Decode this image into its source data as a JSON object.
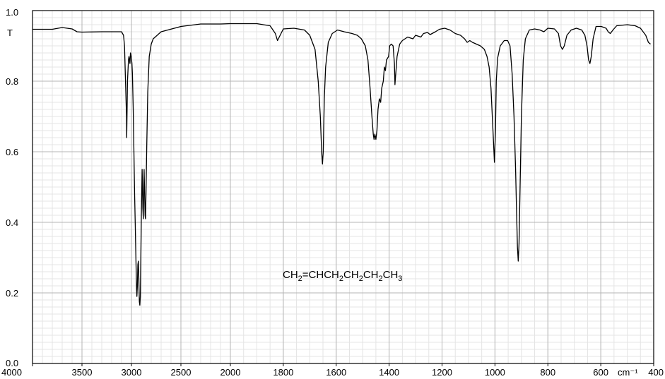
{
  "chart_data": {
    "type": "line",
    "ylabel": "T",
    "x_unit_label": "cm⁻¹",
    "annotation": {
      "parts": [
        {
          "t": "CH",
          "sub": false
        },
        {
          "t": "2",
          "sub": true
        },
        {
          "t": "=CHCH",
          "sub": false
        },
        {
          "t": "2",
          "sub": true
        },
        {
          "t": "CH",
          "sub": false
        },
        {
          "t": "2",
          "sub": true
        },
        {
          "t": "CH",
          "sub": false
        },
        {
          "t": "2",
          "sub": true
        },
        {
          "t": "CH",
          "sub": false
        },
        {
          "t": "3",
          "sub": true
        }
      ]
    },
    "xlim": [
      4000,
      400
    ],
    "ylim": [
      0.0,
      1.0
    ],
    "x_scale": "piecewise-linear",
    "x_breakpoint": 2000,
    "grid": true,
    "x_ticks": [
      "4000",
      "3500",
      "3000",
      "2500",
      "2000",
      "1800",
      "1600",
      "1400",
      "1200",
      "1000",
      "800",
      "600",
      "400"
    ],
    "y_ticks": [
      "0.0",
      "0.2",
      "0.4",
      "0.6",
      "0.8",
      "1.0"
    ],
    "series": [
      {
        "color": "#000000",
        "points": [
          [
            4000,
            0.947
          ],
          [
            3800,
            0.947
          ],
          [
            3700,
            0.952
          ],
          [
            3600,
            0.948
          ],
          [
            3550,
            0.94
          ],
          [
            3500,
            0.939
          ],
          [
            3300,
            0.94
          ],
          [
            3100,
            0.94
          ],
          [
            3080,
            0.93
          ],
          [
            3070,
            0.9
          ],
          [
            3060,
            0.8
          ],
          [
            3050,
            0.7
          ],
          [
            3048,
            0.64
          ],
          [
            3045,
            0.7
          ],
          [
            3040,
            0.8
          ],
          [
            3030,
            0.86
          ],
          [
            3025,
            0.87
          ],
          [
            3015,
            0.85
          ],
          [
            3010,
            0.88
          ],
          [
            3002,
            0.87
          ],
          [
            2995,
            0.85
          ],
          [
            2990,
            0.82
          ],
          [
            2982,
            0.72
          ],
          [
            2975,
            0.6
          ],
          [
            2968,
            0.48
          ],
          [
            2962,
            0.4
          ],
          [
            2955,
            0.3
          ],
          [
            2948,
            0.21
          ],
          [
            2945,
            0.19
          ],
          [
            2940,
            0.22
          ],
          [
            2935,
            0.28
          ],
          [
            2930,
            0.29
          ],
          [
            2925,
            0.24
          ],
          [
            2920,
            0.175
          ],
          [
            2915,
            0.165
          ],
          [
            2910,
            0.19
          ],
          [
            2905,
            0.3
          ],
          [
            2900,
            0.42
          ],
          [
            2895,
            0.5
          ],
          [
            2892,
            0.55
          ],
          [
            2888,
            0.5
          ],
          [
            2885,
            0.44
          ],
          [
            2880,
            0.41
          ],
          [
            2875,
            0.5
          ],
          [
            2872,
            0.55
          ],
          [
            2868,
            0.5
          ],
          [
            2862,
            0.42
          ],
          [
            2858,
            0.41
          ],
          [
            2853,
            0.48
          ],
          [
            2845,
            0.62
          ],
          [
            2835,
            0.77
          ],
          [
            2820,
            0.87
          ],
          [
            2800,
            0.905
          ],
          [
            2780,
            0.92
          ],
          [
            2700,
            0.94
          ],
          [
            2500,
            0.955
          ],
          [
            2300,
            0.962
          ],
          [
            2100,
            0.962
          ],
          [
            2000,
            0.963
          ],
          [
            1900,
            0.963
          ],
          [
            1850,
            0.957
          ],
          [
            1830,
            0.935
          ],
          [
            1822,
            0.915
          ],
          [
            1812,
            0.93
          ],
          [
            1800,
            0.948
          ],
          [
            1760,
            0.95
          ],
          [
            1720,
            0.945
          ],
          [
            1700,
            0.93
          ],
          [
            1680,
            0.89
          ],
          [
            1668,
            0.8
          ],
          [
            1660,
            0.7
          ],
          [
            1655,
            0.6
          ],
          [
            1652,
            0.565
          ],
          [
            1649,
            0.6
          ],
          [
            1645,
            0.75
          ],
          [
            1640,
            0.84
          ],
          [
            1630,
            0.91
          ],
          [
            1615,
            0.935
          ],
          [
            1595,
            0.945
          ],
          [
            1570,
            0.94
          ],
          [
            1540,
            0.935
          ],
          [
            1520,
            0.93
          ],
          [
            1505,
            0.92
          ],
          [
            1490,
            0.9
          ],
          [
            1480,
            0.86
          ],
          [
            1472,
            0.78
          ],
          [
            1465,
            0.7
          ],
          [
            1460,
            0.65
          ],
          [
            1457,
            0.635
          ],
          [
            1454,
            0.65
          ],
          [
            1450,
            0.635
          ],
          [
            1446,
            0.66
          ],
          [
            1442,
            0.72
          ],
          [
            1437,
            0.75
          ],
          [
            1432,
            0.74
          ],
          [
            1428,
            0.78
          ],
          [
            1422,
            0.8
          ],
          [
            1418,
            0.84
          ],
          [
            1414,
            0.83
          ],
          [
            1410,
            0.86
          ],
          [
            1402,
            0.87
          ],
          [
            1398,
            0.9
          ],
          [
            1392,
            0.905
          ],
          [
            1385,
            0.9
          ],
          [
            1380,
            0.85
          ],
          [
            1378,
            0.79
          ],
          [
            1375,
            0.82
          ],
          [
            1370,
            0.87
          ],
          [
            1360,
            0.905
          ],
          [
            1350,
            0.915
          ],
          [
            1330,
            0.925
          ],
          [
            1310,
            0.92
          ],
          [
            1300,
            0.93
          ],
          [
            1280,
            0.925
          ],
          [
            1270,
            0.935
          ],
          [
            1255,
            0.938
          ],
          [
            1245,
            0.932
          ],
          [
            1225,
            0.94
          ],
          [
            1210,
            0.947
          ],
          [
            1190,
            0.95
          ],
          [
            1170,
            0.945
          ],
          [
            1150,
            0.935
          ],
          [
            1130,
            0.93
          ],
          [
            1115,
            0.92
          ],
          [
            1105,
            0.91
          ],
          [
            1095,
            0.915
          ],
          [
            1085,
            0.91
          ],
          [
            1070,
            0.905
          ],
          [
            1055,
            0.9
          ],
          [
            1040,
            0.89
          ],
          [
            1030,
            0.87
          ],
          [
            1022,
            0.84
          ],
          [
            1015,
            0.78
          ],
          [
            1010,
            0.7
          ],
          [
            1005,
            0.62
          ],
          [
            1002,
            0.57
          ],
          [
            998,
            0.66
          ],
          [
            995,
            0.8
          ],
          [
            990,
            0.865
          ],
          [
            980,
            0.9
          ],
          [
            965,
            0.915
          ],
          [
            952,
            0.915
          ],
          [
            943,
            0.9
          ],
          [
            935,
            0.82
          ],
          [
            928,
            0.7
          ],
          [
            922,
            0.55
          ],
          [
            918,
            0.42
          ],
          [
            915,
            0.33
          ],
          [
            912,
            0.29
          ],
          [
            909,
            0.34
          ],
          [
            905,
            0.5
          ],
          [
            900,
            0.7
          ],
          [
            893,
            0.86
          ],
          [
            885,
            0.92
          ],
          [
            870,
            0.945
          ],
          [
            850,
            0.948
          ],
          [
            830,
            0.945
          ],
          [
            815,
            0.94
          ],
          [
            800,
            0.95
          ],
          [
            775,
            0.948
          ],
          [
            760,
            0.935
          ],
          [
            752,
            0.9
          ],
          [
            745,
            0.89
          ],
          [
            738,
            0.9
          ],
          [
            728,
            0.93
          ],
          [
            712,
            0.945
          ],
          [
            692,
            0.95
          ],
          [
            672,
            0.945
          ],
          [
            660,
            0.93
          ],
          [
            652,
            0.9
          ],
          [
            646,
            0.86
          ],
          [
            641,
            0.85
          ],
          [
            636,
            0.87
          ],
          [
            629,
            0.92
          ],
          [
            618,
            0.955
          ],
          [
            598,
            0.955
          ],
          [
            580,
            0.95
          ],
          [
            572,
            0.94
          ],
          [
            564,
            0.935
          ],
          [
            554,
            0.945
          ],
          [
            540,
            0.957
          ],
          [
            500,
            0.96
          ],
          [
            470,
            0.957
          ],
          [
            450,
            0.95
          ],
          [
            430,
            0.93
          ],
          [
            420,
            0.91
          ],
          [
            412,
            0.905
          ]
        ]
      }
    ]
  }
}
